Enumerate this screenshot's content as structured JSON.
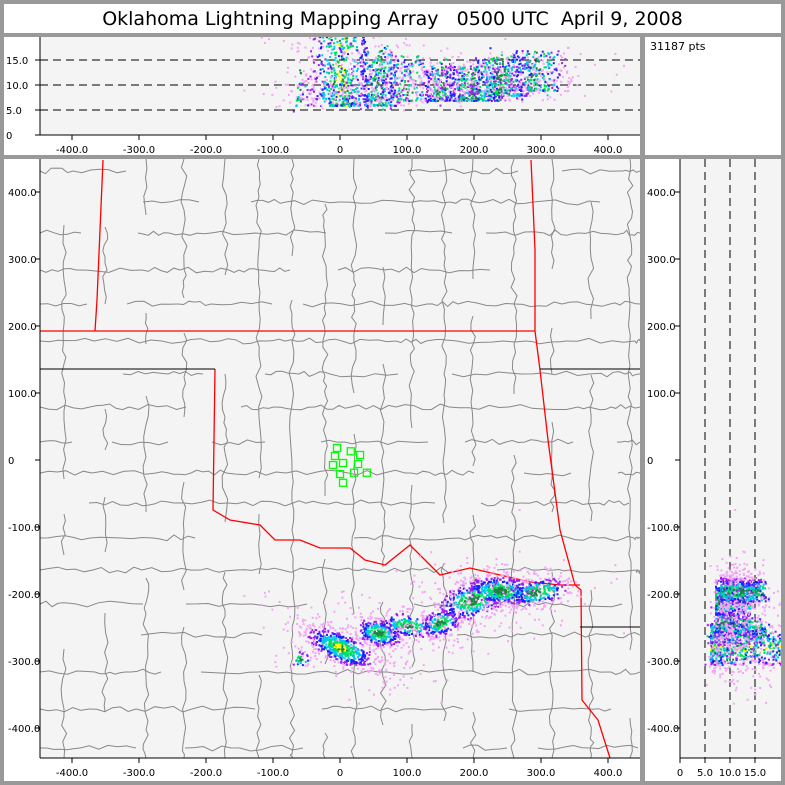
{
  "title": "Oklahoma Lightning Mapping Array   0500 UTC  April 9, 2008",
  "point_count": "31187 pts",
  "colors": {
    "background": "#999999",
    "plot_bg": "#f4f4f4",
    "county_lines": "#888888",
    "state_border": "#ff0000",
    "station": "#00ff00",
    "density": [
      "#f4a6f4",
      "#a020f0",
      "#2020ff",
      "#00c8e8",
      "#00e060",
      "#208040",
      "#ffff00"
    ]
  },
  "chart_data": [
    {
      "type": "scatter",
      "panel": "plan-view",
      "xlim": [
        -450,
        450
      ],
      "ylim": [
        -450,
        450
      ],
      "x_ticks": [
        -400,
        -300,
        -200,
        -100,
        0,
        100,
        200,
        300,
        400
      ],
      "x_tick_labels": [
        "-400.0",
        "-300.0",
        "-200.0",
        "-100.0",
        "0",
        "100.0",
        "200.0",
        "300.0",
        "400.0"
      ],
      "y_ticks": [
        400,
        300,
        200,
        100,
        0,
        -100,
        -200,
        -300,
        -400
      ],
      "y_tick_labels": [
        "400.0",
        "300.0",
        "200.0",
        "100.0",
        "0",
        "-100.0",
        "-200.0",
        "-300.0",
        "-400.0"
      ],
      "stations": [
        [
          -4.5,
          18
        ],
        [
          16,
          13
        ],
        [
          30,
          7.5
        ],
        [
          -7.5,
          6
        ],
        [
          4.5,
          -4.5
        ],
        [
          -10.5,
          -7.5
        ],
        [
          27,
          -6
        ],
        [
          0,
          -21
        ],
        [
          21,
          -19
        ],
        [
          40,
          -19
        ],
        [
          4.5,
          -34
        ]
      ],
      "source_clusters": [
        {
          "x": 0,
          "y": -279,
          "sx": 28,
          "sy": 11,
          "rot": -25,
          "weight": 1.0,
          "alt": [
            6,
            20
          ],
          "core": true
        },
        {
          "x": -60,
          "y": -296,
          "sx": 8,
          "sy": 6,
          "rot": 0,
          "weight": 0.06,
          "alt": [
            6,
            14
          ],
          "core": false
        },
        {
          "x": 57,
          "y": -257,
          "sx": 18,
          "sy": 10,
          "rot": -15,
          "weight": 0.55,
          "alt": [
            6,
            17
          ],
          "core": false
        },
        {
          "x": 100,
          "y": -246,
          "sx": 22,
          "sy": 9,
          "rot": -10,
          "weight": 0.3,
          "alt": [
            7,
            16
          ],
          "core": false
        },
        {
          "x": 149,
          "y": -242,
          "sx": 16,
          "sy": 10,
          "rot": 20,
          "weight": 0.35,
          "alt": [
            7,
            14
          ],
          "core": false
        },
        {
          "x": 197,
          "y": -208,
          "sx": 28,
          "sy": 14,
          "rot": 15,
          "weight": 0.7,
          "alt": [
            7,
            14
          ],
          "core": false
        },
        {
          "x": 239,
          "y": -194,
          "sx": 26,
          "sy": 11,
          "rot": -5,
          "weight": 0.7,
          "alt": [
            8,
            16
          ],
          "core": false
        },
        {
          "x": 292,
          "y": -196,
          "sx": 25,
          "sy": 10,
          "rot": 10,
          "weight": 0.4,
          "alt": [
            9,
            17
          ],
          "core": false
        }
      ]
    },
    {
      "type": "scatter",
      "panel": "altitude-vs-east-west",
      "xlim": [
        -450,
        450
      ],
      "ylim": [
        0,
        20
      ],
      "y_ticks": [
        0,
        5,
        10,
        15
      ],
      "y_tick_labels": [
        "0",
        "5.0",
        "10.0",
        "15.0"
      ],
      "gridlines": [
        5,
        10,
        15
      ]
    },
    {
      "type": "scatter",
      "panel": "north-south-vs-altitude",
      "xlim": [
        0,
        20
      ],
      "ylim": [
        -450,
        450
      ],
      "x_ticks": [
        0,
        5,
        10,
        15
      ],
      "x_tick_labels": [
        "0",
        "5.0",
        "10.0",
        "15.0"
      ],
      "gridlines": [
        5,
        10,
        15
      ]
    }
  ]
}
